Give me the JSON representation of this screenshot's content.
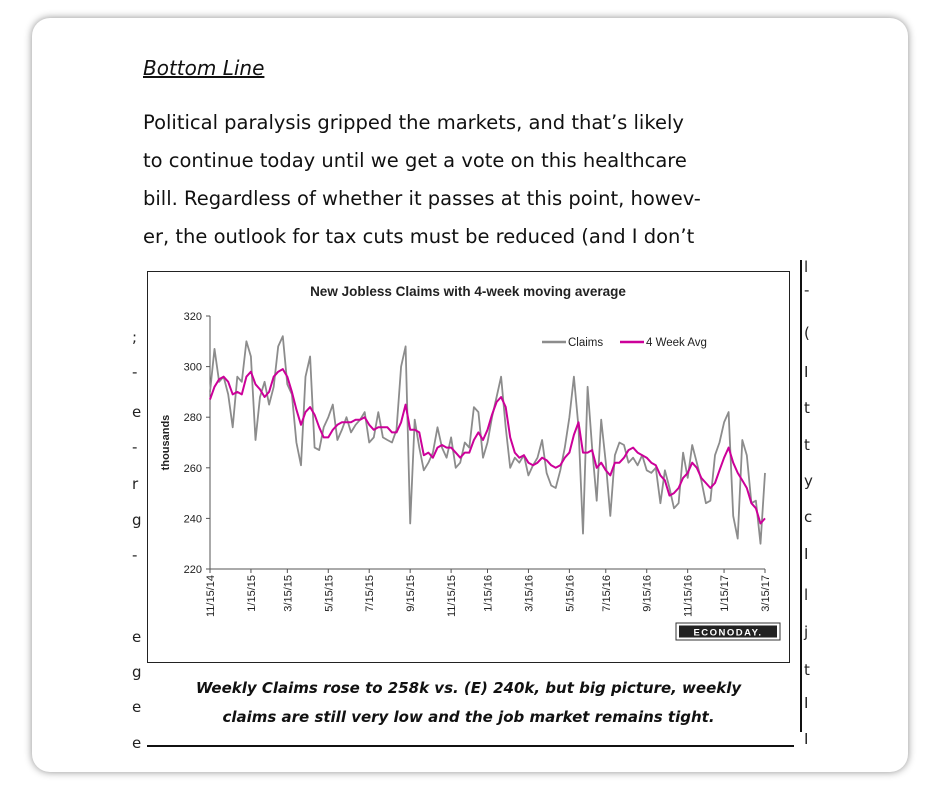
{
  "document": {
    "heading": "Bottom Line",
    "paragraph_lines": [
      "Political paralysis gripped the markets, and that’s likely",
      "to continue today until we get a vote on this healthcare",
      "bill. Regardless of whether it passes at this point, howev-",
      "er, the outlook for tax cuts must be reduced (and I don’t"
    ],
    "caption_lines": [
      "Weekly Claims rose to 258k vs. (E) 240k, but big picture, weekly",
      "claims are still very low and the job market remains tight."
    ],
    "left_fragments": [
      ";",
      "-",
      "e",
      "-",
      "r",
      "g",
      "-",
      "e",
      "g",
      "e",
      "e"
    ],
    "right_fragments": [
      "l",
      "-",
      "(",
      "I",
      "t",
      "t",
      "y",
      "c",
      "I",
      "l",
      "j",
      "t",
      "I",
      "I"
    ]
  },
  "branding": {
    "logo_text": "ECONODAY."
  },
  "colors": {
    "claims": "#8c8c8c",
    "avg": "#cc0099"
  },
  "chart_data": {
    "type": "line",
    "title": "New Jobless Claims with 4-week moving average",
    "ylabel": "thousands",
    "xlabel": "",
    "ylim": [
      220,
      320
    ],
    "yticks": [
      220,
      240,
      260,
      280,
      300,
      320
    ],
    "x_tick_labels": [
      "11/15/14",
      "1/15/15",
      "3/15/15",
      "5/15/15",
      "7/15/15",
      "9/15/15",
      "11/15/15",
      "1/15/16",
      "3/15/16",
      "5/15/16",
      "7/15/16",
      "9/15/16",
      "11/15/16",
      "1/15/17",
      "3/15/17"
    ],
    "x_tick_weeks": [
      0,
      9,
      17,
      26,
      35,
      44,
      53,
      61,
      70,
      79,
      87,
      96,
      105,
      113,
      122
    ],
    "legend_position": "top-right",
    "grid": false,
    "series": [
      {
        "name": "Claims",
        "values": [
          290,
          307,
          294,
          296,
          289,
          276,
          296,
          294,
          310,
          304,
          271,
          288,
          294,
          285,
          292,
          308,
          312,
          293,
          289,
          270,
          261,
          296,
          304,
          268,
          267,
          276,
          280,
          285,
          271,
          275,
          280,
          274,
          277,
          279,
          282,
          270,
          272,
          282,
          272,
          271,
          270,
          275,
          300,
          308,
          238,
          279,
          268,
          259,
          262,
          266,
          276,
          268,
          264,
          272,
          260,
          262,
          270,
          268,
          284,
          282,
          264,
          270,
          280,
          288,
          296,
          276,
          260,
          264,
          262,
          265,
          257,
          261,
          264,
          271,
          258,
          253,
          252,
          259,
          268,
          280,
          296,
          276,
          234,
          292,
          268,
          247,
          279,
          262,
          241,
          265,
          270,
          269,
          262,
          264,
          261,
          265,
          259,
          258,
          260,
          246,
          259,
          252,
          244,
          246,
          266,
          256,
          269,
          262,
          255,
          246,
          247,
          265,
          270,
          278,
          282,
          241,
          232,
          271,
          265,
          246,
          247,
          230,
          258
        ]
      },
      {
        "name": "4 Week Avg",
        "values": [
          287,
          292,
          295,
          296,
          294,
          289,
          290,
          289,
          296,
          298,
          293,
          291,
          288,
          290,
          296,
          298,
          299,
          296,
          290,
          283,
          277,
          282,
          284,
          281,
          276,
          272,
          272,
          275,
          277,
          278,
          278,
          278,
          279,
          279,
          280,
          277,
          275,
          276,
          276,
          276,
          274,
          274,
          278,
          285,
          275,
          275,
          274,
          265,
          266,
          264,
          268,
          269,
          268,
          268,
          266,
          264,
          266,
          266,
          271,
          274,
          271,
          275,
          281,
          286,
          288,
          284,
          272,
          266,
          264,
          265,
          262,
          261,
          262,
          264,
          263,
          261,
          260,
          261,
          264,
          266,
          273,
          278,
          266,
          266,
          267,
          260,
          262,
          259,
          257,
          262,
          262,
          264,
          267,
          268,
          266,
          265,
          264,
          262,
          261,
          257,
          255,
          249,
          250,
          252,
          256,
          258,
          262,
          260,
          256,
          254,
          252,
          254,
          259,
          264,
          268,
          262,
          258,
          255,
          252,
          246,
          244,
          238,
          240
        ]
      }
    ]
  }
}
